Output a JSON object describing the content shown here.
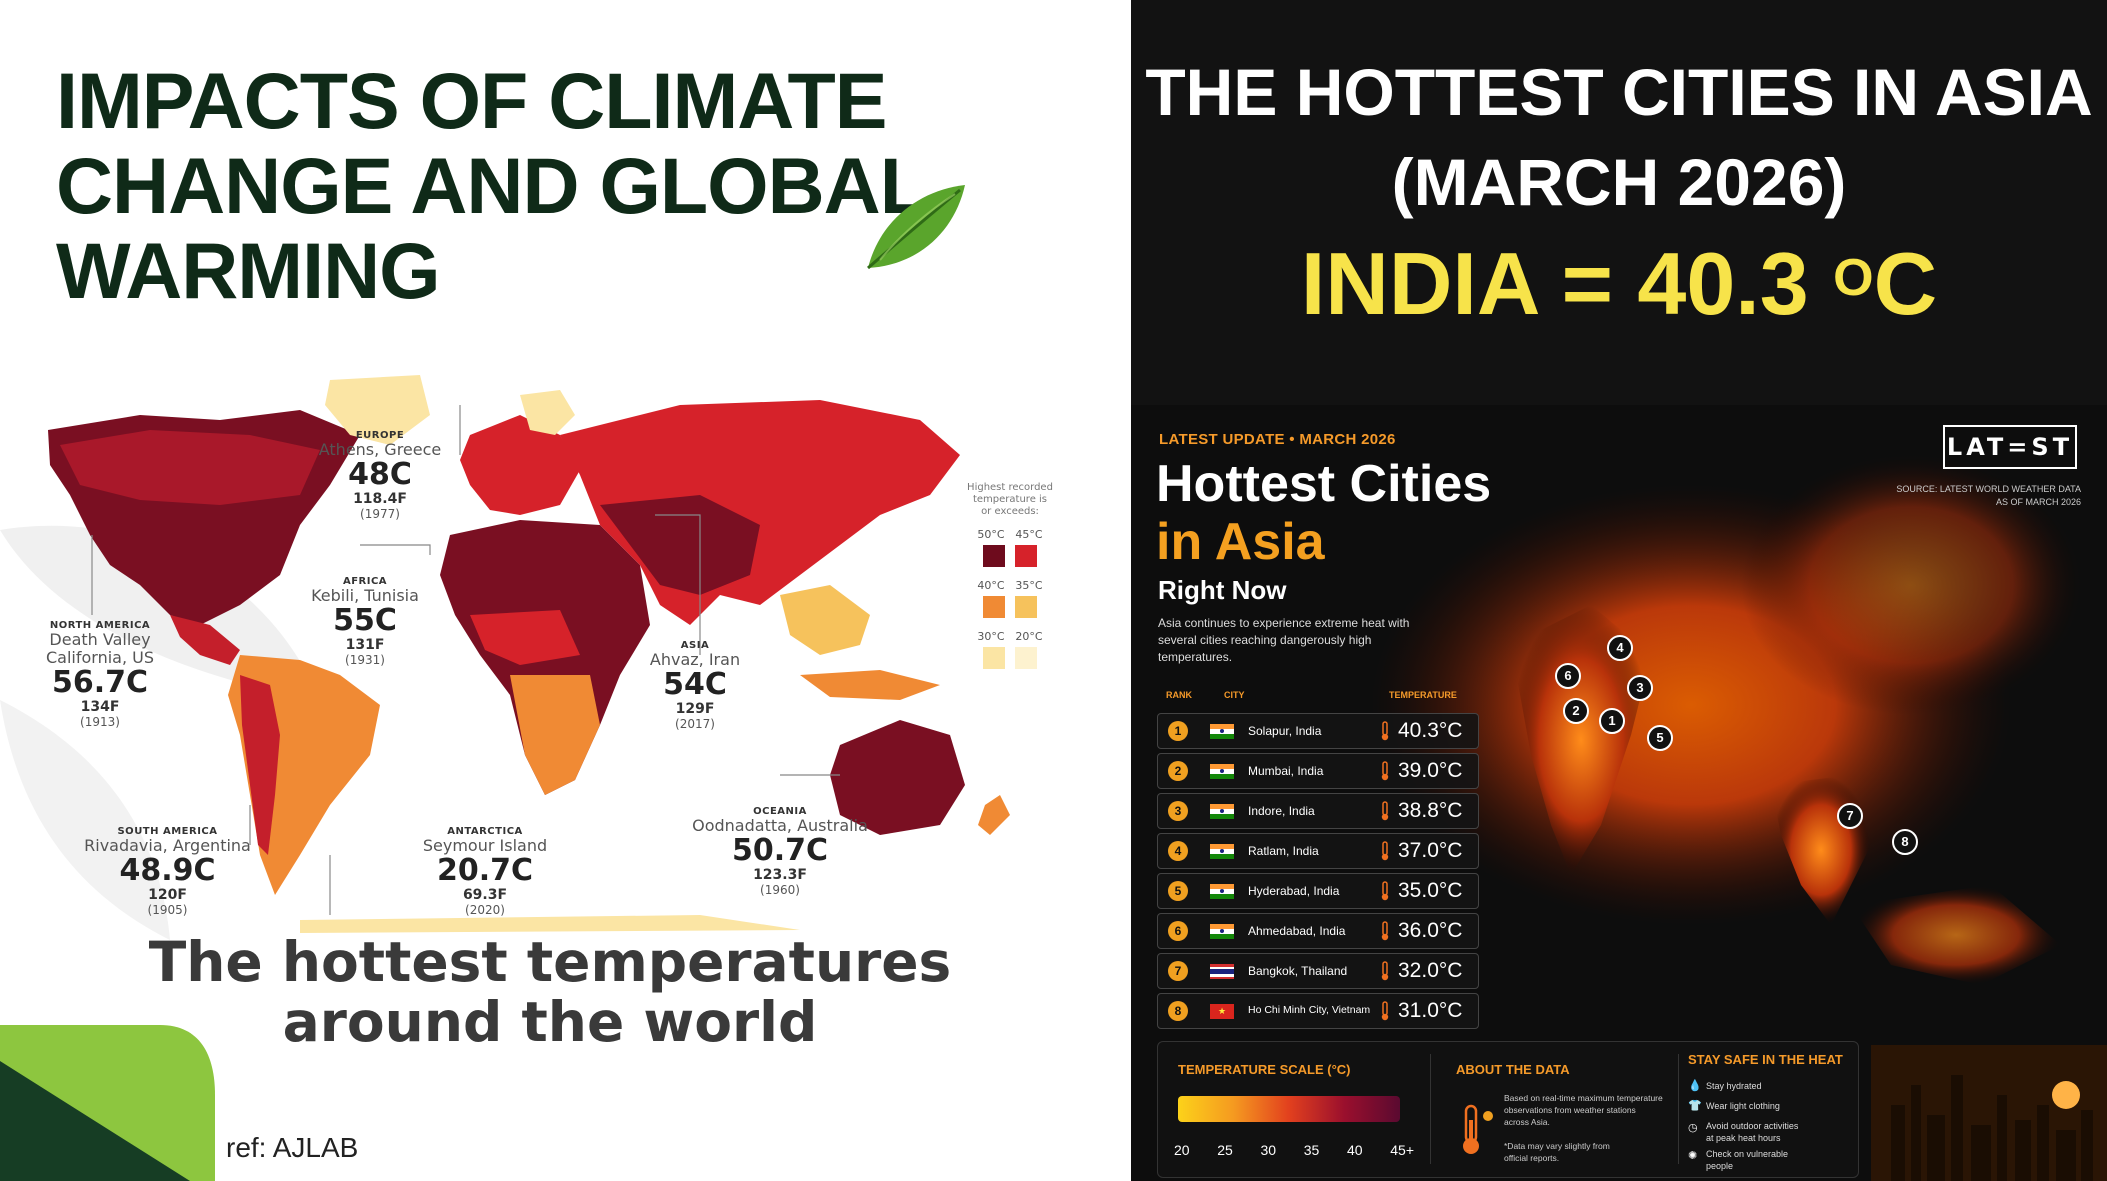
{
  "left": {
    "title_lines": [
      "IMPACTS OF CLIMATE",
      "CHANGE AND GLOBAL",
      "WARMING"
    ],
    "subtitle_lines": [
      "The hottest temperatures",
      "around the world"
    ],
    "ref": "ref: AJLAB",
    "legend": {
      "header_lines": [
        "Highest recorded",
        "temperature is",
        "or exceeds:"
      ],
      "rows": [
        {
          "labels": [
            "50°C",
            "45°C"
          ],
          "colors": [
            "#6e0b1d",
            "#d6222a"
          ]
        },
        {
          "labels": [
            "40°C",
            "35°C"
          ],
          "colors": [
            "#f08a34",
            "#f6c25c"
          ]
        },
        {
          "labels": [
            "30°C",
            "20°C"
          ],
          "colors": [
            "#fbe5a4",
            "#fdf2cf"
          ]
        }
      ]
    },
    "records": [
      {
        "region": "EUROPE",
        "place": "Athens, Greece",
        "celsius": "48C",
        "fahrenheit": "118.4F",
        "year": "(1977)"
      },
      {
        "region": "AFRICA",
        "place": "Kebili, Tunisia",
        "celsius": "55C",
        "fahrenheit": "131F",
        "year": "(1931)"
      },
      {
        "region": "NORTH AMERICA",
        "place_lines": [
          "Death Valley",
          "California, US"
        ],
        "celsius": "56.7C",
        "fahrenheit": "134F",
        "year": "(1913)"
      },
      {
        "region": "ASIA",
        "place": "Ahvaz, Iran",
        "celsius": "54C",
        "fahrenheit": "129F",
        "year": "(2017)"
      },
      {
        "region": "SOUTH AMERICA",
        "place": "Rivadavia, Argentina",
        "celsius": "48.9C",
        "fahrenheit": "120F",
        "year": "(1905)"
      },
      {
        "region": "ANTARCTICA",
        "place": "Seymour Island",
        "celsius": "20.7C",
        "fahrenheit": "69.3F",
        "year": "(2020)"
      },
      {
        "region": "OCEANIA",
        "place": "Oodnadatta, Australia",
        "celsius": "50.7C",
        "fahrenheit": "123.3F",
        "year": "(1960)"
      }
    ]
  },
  "right": {
    "title_line1": "THE HOTTEST CITIES IN ASIA",
    "title_line2": "(MARCH 2026)",
    "india": "INDIA = 40.3 ",
    "india_sup": "O",
    "india_unit": "C",
    "infographic": {
      "update": "LATEST UPDATE • MARCH 2026",
      "heading1": "Hottest Cities",
      "heading2": "in Asia",
      "heading3": "Right Now",
      "description": "Asia continues to experience extreme heat with several cities reaching dangerously high temperatures.",
      "logo": "LAT=ST",
      "source_lines": [
        "SOURCE: LATEST WORLD WEATHER DATA",
        "AS OF MARCH 2026"
      ],
      "columns": {
        "rank": "RANK",
        "city": "CITY",
        "temperature": "TEMPERATURE"
      },
      "rows": [
        {
          "rank": "1",
          "city": "Solapur, India",
          "temp": "40.3°C",
          "flag": "india"
        },
        {
          "rank": "2",
          "city": "Mumbai, India",
          "temp": "39.0°C",
          "flag": "india"
        },
        {
          "rank": "3",
          "city": "Indore, India",
          "temp": "38.8°C",
          "flag": "india"
        },
        {
          "rank": "4",
          "city": "Ratlam, India",
          "temp": "37.0°C",
          "flag": "india"
        },
        {
          "rank": "5",
          "city": "Hyderabad, India",
          "temp": "35.0°C",
          "flag": "india"
        },
        {
          "rank": "6",
          "city": "Ahmedabad, India",
          "temp": "36.0°C",
          "flag": "india"
        },
        {
          "rank": "7",
          "city": "Bangkok, Thailand",
          "temp": "32.0°C",
          "flag": "thailand"
        },
        {
          "rank": "8",
          "city": "Ho Chi Minh City, Vietnam",
          "temp": "31.0°C",
          "flag": "vietnam"
        }
      ],
      "scale": {
        "title": "TEMPERATURE SCALE (°C)",
        "ticks": [
          "20",
          "25",
          "30",
          "35",
          "40",
          "45+"
        ]
      },
      "about": {
        "title": "ABOUT THE DATA",
        "text_lines": [
          "Based on real-time maximum temperature",
          "observations from weather stations",
          "across Asia."
        ],
        "note_lines": [
          "*Data may vary slightly from",
          "official reports."
        ]
      },
      "stay_safe": {
        "title": "STAY SAFE IN THE HEAT",
        "tips": [
          [
            "Stay hydrated"
          ],
          [
            "Wear light clothing"
          ],
          [
            "Avoid outdoor activities",
            "at peak heat hours"
          ],
          [
            "Check on vulnerable",
            "people"
          ]
        ]
      }
    }
  }
}
